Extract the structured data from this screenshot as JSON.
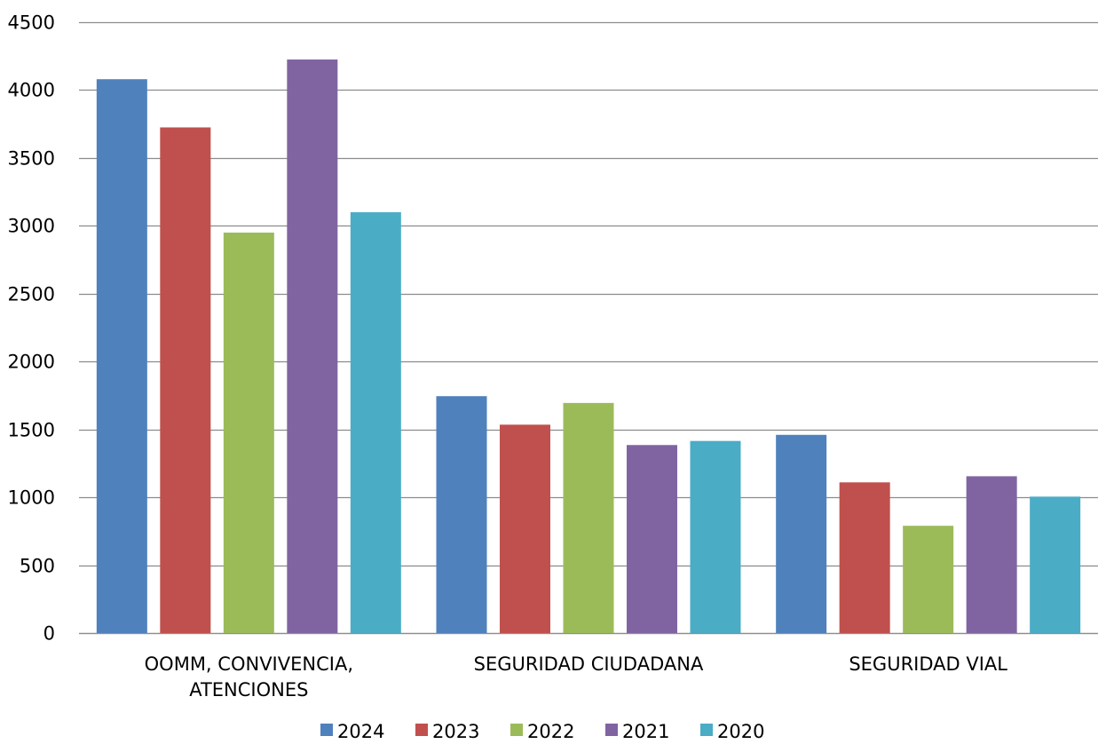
{
  "chart_data": {
    "type": "bar",
    "title": "",
    "xlabel": "",
    "ylabel": "",
    "categories": [
      [
        "OOMM, CONVIVENCIA,",
        "ATENCIONES"
      ],
      [
        "SEGURIDAD CIUDADANA"
      ],
      [
        "SEGURIDAD VIAL"
      ]
    ],
    "series": [
      {
        "name": "2024",
        "color": "#4F81BD",
        "values": [
          4080,
          1745,
          1460
        ]
      },
      {
        "name": "2023",
        "color": "#C0504D",
        "values": [
          3725,
          1535,
          1110
        ]
      },
      {
        "name": "2022",
        "color": "#9BBB59",
        "values": [
          2950,
          1695,
          790
        ]
      },
      {
        "name": "2021",
        "color": "#8064A2",
        "values": [
          4225,
          1385,
          1155
        ]
      },
      {
        "name": "2020",
        "color": "#4BACC6",
        "values": [
          3100,
          1415,
          1005
        ]
      }
    ],
    "ylim": [
      0,
      4500
    ],
    "yticks": [
      0,
      500,
      1000,
      1500,
      2000,
      2500,
      3000,
      3500,
      4000,
      4500
    ],
    "grid": true,
    "legend_position": "bottom"
  }
}
